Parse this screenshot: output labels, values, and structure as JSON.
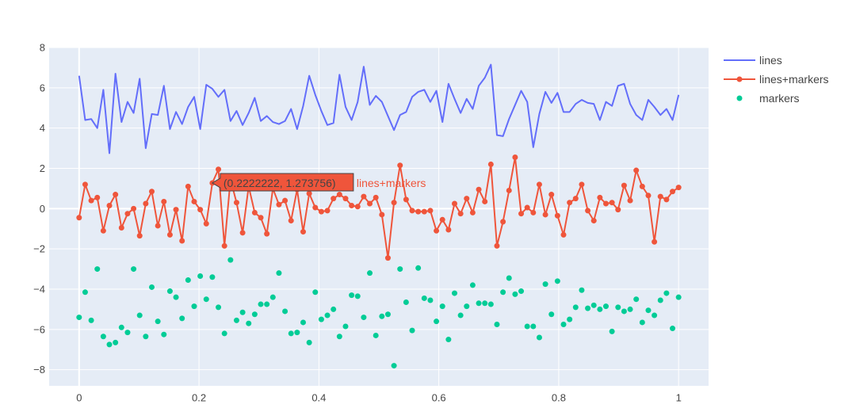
{
  "chart_data": {
    "type": "line",
    "title": "",
    "xlabel": "",
    "ylabel": "",
    "xlim": [
      -0.05,
      1.05
    ],
    "ylim": [
      -8.8,
      8.0
    ],
    "xticks": [
      0,
      0.2,
      0.4,
      0.6,
      0.8,
      1
    ],
    "xtick_labels": [
      "0",
      "0.2",
      "0.4",
      "0.6",
      "0.8",
      "1"
    ],
    "yticks": [
      -8,
      -6,
      -4,
      -2,
      0,
      2,
      4,
      6,
      8
    ],
    "ytick_labels": [
      "−8",
      "−6",
      "−4",
      "−2",
      "0",
      "2",
      "4",
      "6",
      "8"
    ],
    "grid": true,
    "legend_position": "top-right",
    "plot_background": "#E5ECF6",
    "x": [
      0,
      0.010101,
      0.020202,
      0.030303,
      0.040404,
      0.050505,
      0.060606,
      0.070707,
      0.080808,
      0.090909,
      0.10101,
      0.111111,
      0.121212,
      0.131313,
      0.141414,
      0.151515,
      0.161616,
      0.171717,
      0.181818,
      0.191919,
      0.20202,
      0.212121,
      0.222222,
      0.232323,
      0.242424,
      0.252525,
      0.262626,
      0.272727,
      0.282828,
      0.292929,
      0.30303,
      0.313131,
      0.323232,
      0.333333,
      0.343434,
      0.353535,
      0.363636,
      0.373737,
      0.383838,
      0.393939,
      0.40404,
      0.414141,
      0.424242,
      0.434343,
      0.444444,
      0.454545,
      0.464646,
      0.474747,
      0.484848,
      0.494949,
      0.505051,
      0.515152,
      0.525253,
      0.535354,
      0.545455,
      0.555556,
      0.565657,
      0.575758,
      0.585859,
      0.59596,
      0.606061,
      0.616162,
      0.626263,
      0.636364,
      0.646465,
      0.656566,
      0.666667,
      0.676768,
      0.686869,
      0.69697,
      0.707071,
      0.717172,
      0.727273,
      0.737374,
      0.747475,
      0.757576,
      0.767677,
      0.777778,
      0.787879,
      0.79798,
      0.808081,
      0.818182,
      0.828283,
      0.838384,
      0.848485,
      0.858586,
      0.868687,
      0.878788,
      0.888889,
      0.89899,
      0.909091,
      0.919192,
      0.929293,
      0.939394,
      0.949495,
      0.959596,
      0.969697,
      0.979798,
      0.989899,
      1
    ],
    "series": [
      {
        "name": "lines",
        "mode": "lines",
        "color": "#636EFA",
        "values": [
          6.6,
          4.4,
          4.45,
          4.0,
          5.9,
          2.75,
          6.7,
          4.3,
          5.3,
          4.75,
          6.45,
          3.0,
          4.7,
          4.65,
          6.1,
          3.95,
          4.8,
          4.2,
          5.05,
          5.55,
          3.95,
          6.15,
          5.95,
          5.55,
          5.9,
          4.35,
          4.85,
          4.15,
          4.75,
          5.5,
          4.35,
          4.6,
          4.3,
          4.2,
          4.35,
          4.95,
          3.95,
          5.1,
          6.6,
          5.65,
          4.85,
          4.15,
          4.25,
          6.65,
          5.05,
          4.4,
          5.3,
          7.05,
          5.15,
          5.6,
          5.3,
          4.6,
          3.9,
          4.65,
          4.8,
          5.55,
          5.8,
          5.9,
          5.3,
          5.85,
          4.3,
          6.2,
          5.45,
          4.75,
          5.45,
          4.95,
          6.1,
          6.5,
          7.15,
          3.65,
          3.6,
          4.45,
          5.15,
          5.85,
          5.3,
          3.05,
          4.7,
          5.8,
          5.25,
          5.75,
          4.8,
          4.8,
          5.2,
          5.4,
          5.25,
          5.2,
          4.4,
          5.3,
          5.1,
          6.1,
          6.2,
          5.2,
          4.65,
          4.4,
          5.4,
          5.05,
          4.65,
          4.95,
          4.4,
          5.65
        ]
      },
      {
        "name": "lines+markers",
        "mode": "lines+markers",
        "color": "#EF553B",
        "values": [
          -0.45,
          1.2,
          0.4,
          0.55,
          -1.1,
          0.15,
          0.7,
          -0.95,
          -0.25,
          0.0,
          -1.35,
          0.25,
          0.85,
          -0.85,
          0.35,
          -1.3,
          -0.05,
          -1.6,
          1.1,
          0.35,
          -0.05,
          -0.75,
          1.273756,
          1.95,
          -1.85,
          1.45,
          0.3,
          -1.2,
          1.1,
          -0.2,
          -0.45,
          -1.25,
          1.0,
          0.2,
          0.4,
          -0.6,
          0.95,
          -1.15,
          0.75,
          0.05,
          -0.15,
          -0.1,
          0.5,
          0.7,
          0.5,
          0.15,
          0.1,
          0.6,
          0.25,
          0.55,
          -0.3,
          -2.45,
          0.3,
          2.15,
          0.45,
          -0.1,
          -0.15,
          -0.15,
          -0.1,
          -1.1,
          -0.55,
          -1.05,
          0.25,
          -0.25,
          0.5,
          -0.2,
          0.95,
          0.35,
          2.2,
          -1.85,
          -0.65,
          0.9,
          2.55,
          -0.25,
          0.05,
          -0.2,
          1.2,
          -0.3,
          0.7,
          -0.35,
          -1.3,
          0.3,
          0.5,
          1.2,
          -0.1,
          -0.6,
          0.55,
          0.25,
          0.3,
          -0.05,
          1.15,
          0.4,
          1.9,
          1.1,
          0.65,
          -1.65,
          0.6,
          0.45,
          0.85,
          1.05
        ]
      },
      {
        "name": "markers",
        "mode": "markers",
        "color": "#00CC96",
        "values": [
          -5.4,
          -4.15,
          -5.55,
          -3.0,
          -6.35,
          -6.75,
          -6.65,
          -5.9,
          -6.15,
          -3.0,
          -5.3,
          -6.35,
          -3.9,
          -5.6,
          -6.25,
          -4.1,
          -4.4,
          -5.45,
          -3.55,
          -4.85,
          -3.35,
          -4.5,
          -3.4,
          -4.9,
          -6.2,
          -2.55,
          -5.55,
          -5.15,
          -5.7,
          -5.25,
          -4.75,
          -4.75,
          -4.4,
          -3.2,
          -5.1,
          -6.2,
          -6.15,
          -5.65,
          -6.65,
          -4.15,
          -5.5,
          -5.3,
          -5.0,
          -6.35,
          -5.85,
          -4.3,
          -4.35,
          -5.4,
          -3.2,
          -6.3,
          -5.35,
          -5.25,
          -7.8,
          -3.0,
          -4.65,
          -6.05,
          -2.95,
          -4.45,
          -4.55,
          -5.6,
          -4.85,
          -6.5,
          -4.2,
          -5.3,
          -4.85,
          -3.8,
          -4.7,
          -4.7,
          -4.75,
          -5.75,
          -4.15,
          -3.45,
          -4.25,
          -4.1,
          -5.85,
          -5.85,
          -6.4,
          -3.75,
          -5.25,
          -3.6,
          -5.75,
          -5.5,
          -4.9,
          -4.05,
          -4.95,
          -4.8,
          -5.0,
          -4.85,
          -6.1,
          -4.9,
          -5.1,
          -5.0,
          -4.5,
          -5.65,
          -5.05,
          -5.3,
          -4.55,
          -4.2,
          -5.95,
          -4.4
        ]
      }
    ],
    "hover": {
      "series": "lines+markers",
      "x": 0.2222222,
      "y": 1.273756,
      "label": "(0.2222222, 1.273756)",
      "name": "lines+markers"
    }
  }
}
